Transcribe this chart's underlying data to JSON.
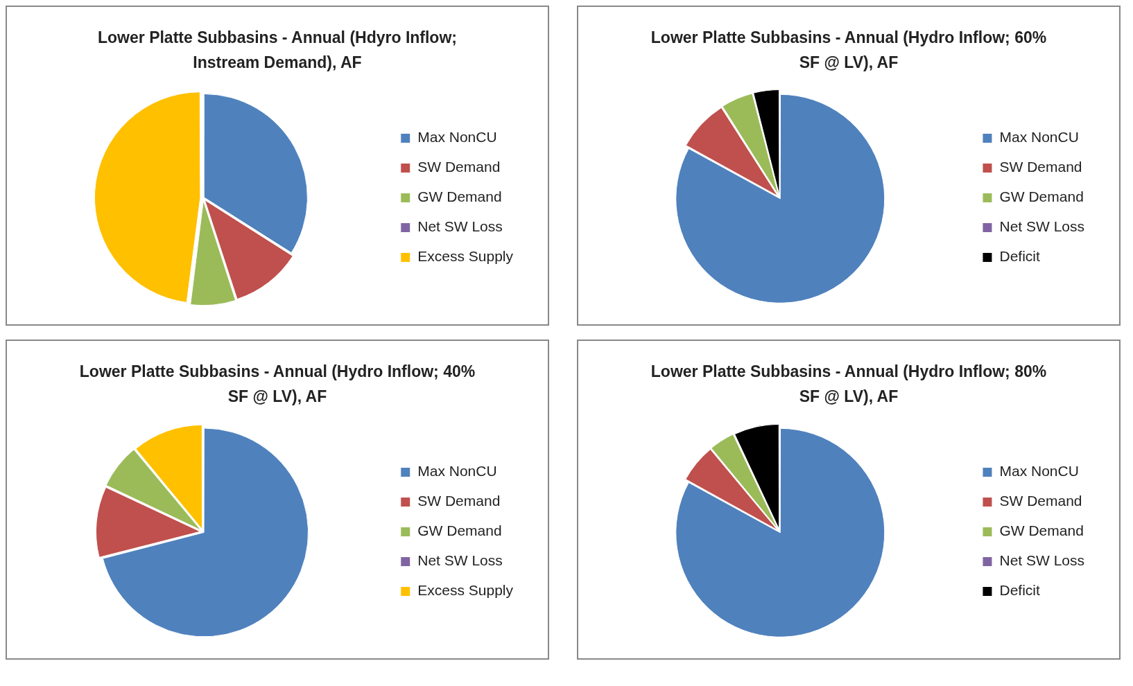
{
  "chart_data": [
    {
      "type": "pie",
      "title": "Lower Platte Subbasins - Annual (Hdyro Inflow; Instream Demand), AF",
      "categories": [
        "Max NonCU",
        "SW Demand",
        "GW Demand",
        "Net SW Loss",
        "Excess Supply"
      ],
      "values": [
        34,
        11,
        7,
        0,
        48
      ],
      "colors": [
        "#4f81bd",
        "#c0504d",
        "#9bbb59",
        "#8064a2",
        "#ffc000"
      ],
      "legend": "right"
    },
    {
      "type": "pie",
      "title": "Lower Platte Subbasins - Annual (Hydro Inflow; 60% SF @ LV), AF",
      "categories": [
        "Max NonCU",
        "SW Demand",
        "GW Demand",
        "Net SW Loss",
        "Deficit"
      ],
      "values": [
        83,
        8,
        5,
        0,
        4
      ],
      "colors": [
        "#4f81bd",
        "#c0504d",
        "#9bbb59",
        "#8064a2",
        "#000000"
      ],
      "legend": "right"
    },
    {
      "type": "pie",
      "title": "Lower Platte Subbasins - Annual (Hydro Inflow; 40% SF @ LV), AF",
      "categories": [
        "Max NonCU",
        "SW Demand",
        "GW Demand",
        "Net SW Loss",
        "Excess Supply"
      ],
      "values": [
        71,
        11,
        7,
        0,
        11
      ],
      "colors": [
        "#4f81bd",
        "#c0504d",
        "#9bbb59",
        "#8064a2",
        "#ffc000"
      ],
      "legend": "right"
    },
    {
      "type": "pie",
      "title": "Lower Platte Subbasins - Annual (Hydro Inflow; 80% SF @ LV), AF",
      "categories": [
        "Max NonCU",
        "SW Demand",
        "GW Demand",
        "Net SW Loss",
        "Deficit"
      ],
      "values": [
        83,
        6,
        4,
        0,
        7
      ],
      "colors": [
        "#4f81bd",
        "#c0504d",
        "#9bbb59",
        "#8064a2",
        "#000000"
      ],
      "legend": "right"
    }
  ]
}
